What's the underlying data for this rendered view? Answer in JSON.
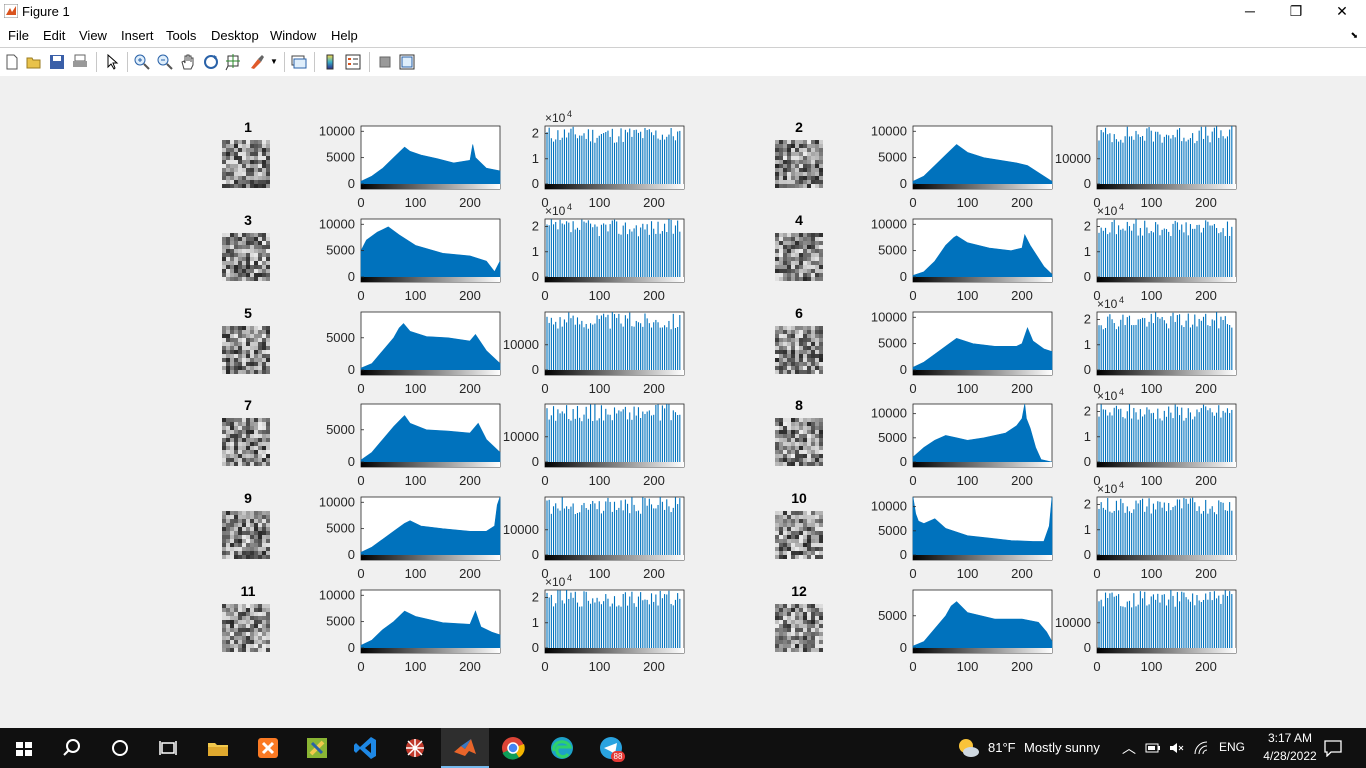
{
  "window": {
    "title": "Figure 1"
  },
  "menu": [
    "File",
    "Edit",
    "View",
    "Insert",
    "Tools",
    "Desktop",
    "Window",
    "Help"
  ],
  "toolbar": [
    "new-figure",
    "open",
    "save",
    "print",
    "edit-plot",
    "zoom-in",
    "zoom-out",
    "pan",
    "rotate-3d",
    "data-cursor",
    "brush",
    "link-plot",
    "colorbar",
    "legend",
    "hide-plot-tools",
    "show-plot-tools"
  ],
  "colors": {
    "histogram": "#0072bd",
    "background": "#f0f0f0",
    "taskbar": "#101010"
  },
  "subplots": [
    {
      "title": "1",
      "hist_yticks": [
        "0",
        "5000",
        "10000"
      ],
      "eq_yticks": [
        "0",
        "1",
        "2"
      ],
      "eq_exponent": "4",
      "xticks": [
        "0",
        "100",
        "200"
      ]
    },
    {
      "title": "2",
      "hist_yticks": [
        "0",
        "5000",
        "10000"
      ],
      "eq_yticks": [
        "0",
        "10000"
      ],
      "eq_exponent": "",
      "xticks": [
        "0",
        "100",
        "200"
      ]
    },
    {
      "title": "3",
      "hist_yticks": [
        "0",
        "5000",
        "10000"
      ],
      "eq_yticks": [
        "0",
        "1",
        "2"
      ],
      "eq_exponent": "4",
      "xticks": [
        "0",
        "100",
        "200"
      ]
    },
    {
      "title": "4",
      "hist_yticks": [
        "0",
        "5000",
        "10000"
      ],
      "eq_yticks": [
        "0",
        "1",
        "2"
      ],
      "eq_exponent": "4",
      "xticks": [
        "0",
        "100",
        "200"
      ]
    },
    {
      "title": "5",
      "hist_yticks": [
        "0",
        "5000"
      ],
      "eq_yticks": [
        "0",
        "10000"
      ],
      "eq_exponent": "",
      "xticks": [
        "0",
        "100",
        "200"
      ]
    },
    {
      "title": "6",
      "hist_yticks": [
        "0",
        "5000",
        "10000"
      ],
      "eq_yticks": [
        "0",
        "1",
        "2"
      ],
      "eq_exponent": "4",
      "xticks": [
        "0",
        "100",
        "200"
      ]
    },
    {
      "title": "7",
      "hist_yticks": [
        "0",
        "5000"
      ],
      "eq_yticks": [
        "0",
        "10000"
      ],
      "eq_exponent": "",
      "xticks": [
        "0",
        "100",
        "200"
      ]
    },
    {
      "title": "8",
      "hist_yticks": [
        "0",
        "5000",
        "10000"
      ],
      "eq_yticks": [
        "0",
        "1",
        "2"
      ],
      "eq_exponent": "4",
      "xticks": [
        "0",
        "100",
        "200"
      ]
    },
    {
      "title": "9",
      "hist_yticks": [
        "0",
        "5000",
        "10000"
      ],
      "eq_yticks": [
        "0",
        "10000"
      ],
      "eq_exponent": "",
      "xticks": [
        "0",
        "100",
        "200"
      ]
    },
    {
      "title": "10",
      "hist_yticks": [
        "0",
        "5000",
        "10000"
      ],
      "eq_yticks": [
        "0",
        "1",
        "2"
      ],
      "eq_exponent": "4",
      "xticks": [
        "0",
        "100",
        "200"
      ]
    },
    {
      "title": "11",
      "hist_yticks": [
        "0",
        "5000",
        "10000"
      ],
      "eq_yticks": [
        "0",
        "1",
        "2"
      ],
      "eq_exponent": "4",
      "xticks": [
        "0",
        "100",
        "200"
      ]
    },
    {
      "title": "12",
      "hist_yticks": [
        "0",
        "5000"
      ],
      "eq_yticks": [
        "0",
        "10000"
      ],
      "eq_exponent": "",
      "xticks": [
        "0",
        "100",
        "200"
      ]
    }
  ],
  "chart_data": [
    {
      "type": "area",
      "title": "1",
      "x": [
        0,
        20,
        40,
        60,
        75,
        80,
        90,
        110,
        140,
        170,
        200,
        205,
        210,
        230,
        255
      ],
      "y": [
        500,
        1500,
        3000,
        5000,
        6500,
        7000,
        6200,
        5500,
        4800,
        4000,
        4500,
        7500,
        5000,
        3000,
        2500
      ],
      "ylim": [
        0,
        11000
      ],
      "xlim": [
        0,
        255
      ]
    },
    {
      "type": "area",
      "title": "2",
      "x": [
        0,
        20,
        40,
        60,
        75,
        80,
        100,
        130,
        160,
        190,
        210,
        240,
        255
      ],
      "y": [
        500,
        1500,
        3500,
        5500,
        7000,
        7500,
        6000,
        5000,
        4500,
        4000,
        3500,
        1500,
        500
      ],
      "ylim": [
        0,
        11000
      ],
      "xlim": [
        0,
        255
      ]
    },
    {
      "type": "area",
      "title": "3",
      "x": [
        0,
        10,
        30,
        50,
        70,
        100,
        150,
        200,
        230,
        245,
        255
      ],
      "y": [
        5000,
        7000,
        8500,
        9500,
        8000,
        6000,
        4500,
        4000,
        3000,
        1000,
        3000
      ],
      "ylim": [
        0,
        11000
      ],
      "xlim": [
        0,
        255
      ]
    },
    {
      "type": "area",
      "title": "4",
      "x": [
        0,
        20,
        40,
        60,
        75,
        80,
        100,
        140,
        180,
        200,
        205,
        215,
        240,
        255
      ],
      "y": [
        300,
        1000,
        3000,
        6000,
        7500,
        7800,
        6500,
        5500,
        5000,
        5500,
        8000,
        6000,
        2000,
        500
      ],
      "ylim": [
        0,
        11000
      ],
      "xlim": [
        0,
        255
      ]
    },
    {
      "type": "area",
      "title": "5",
      "x": [
        0,
        20,
        40,
        60,
        70,
        78,
        90,
        120,
        160,
        200,
        210,
        230,
        255
      ],
      "y": [
        300,
        1000,
        3000,
        5000,
        6500,
        7200,
        6000,
        5200,
        5000,
        4500,
        5500,
        3000,
        1000
      ],
      "ylim": [
        0,
        9000
      ],
      "xlim": [
        0,
        255
      ]
    },
    {
      "type": "area",
      "title": "6",
      "x": [
        0,
        20,
        40,
        60,
        80,
        110,
        150,
        190,
        200,
        210,
        220,
        240,
        255
      ],
      "y": [
        500,
        1500,
        3000,
        4500,
        6000,
        5000,
        4500,
        4500,
        5000,
        8000,
        5500,
        4000,
        3500
      ],
      "ylim": [
        0,
        11000
      ],
      "xlim": [
        0,
        255
      ]
    },
    {
      "type": "area",
      "title": "7",
      "x": [
        0,
        20,
        40,
        60,
        75,
        80,
        90,
        120,
        160,
        200,
        215,
        230,
        255
      ],
      "y": [
        300,
        1500,
        3500,
        5500,
        6800,
        7200,
        6000,
        5000,
        4800,
        4500,
        6000,
        3500,
        1500
      ],
      "ylim": [
        0,
        9000
      ],
      "xlim": [
        0,
        255
      ]
    },
    {
      "type": "area",
      "title": "8",
      "x": [
        0,
        20,
        40,
        60,
        80,
        100,
        130,
        170,
        190,
        200,
        205,
        208,
        215,
        225,
        235,
        255
      ],
      "y": [
        1000,
        3000,
        4500,
        5500,
        5000,
        4500,
        5000,
        6000,
        7500,
        9000,
        12000,
        9000,
        7000,
        3000,
        500,
        0
      ],
      "ylim": [
        0,
        12000
      ],
      "xlim": [
        0,
        255
      ]
    },
    {
      "type": "area",
      "title": "9",
      "x": [
        0,
        20,
        40,
        60,
        80,
        90,
        110,
        150,
        200,
        230,
        245,
        250,
        255
      ],
      "y": [
        500,
        1500,
        3000,
        4500,
        6000,
        6500,
        5500,
        5000,
        4500,
        4500,
        5500,
        9500,
        11000
      ],
      "ylim": [
        0,
        11000
      ],
      "xlim": [
        0,
        255
      ]
    },
    {
      "type": "area",
      "title": "10",
      "x": [
        0,
        5,
        10,
        20,
        40,
        60,
        100,
        140,
        180,
        220,
        240,
        250,
        255
      ],
      "y": [
        12000,
        8500,
        7000,
        6500,
        7500,
        5500,
        4000,
        3500,
        3000,
        2800,
        2800,
        6000,
        12000
      ],
      "ylim": [
        0,
        12000
      ],
      "xlim": [
        0,
        255
      ]
    },
    {
      "type": "area",
      "title": "11",
      "x": [
        0,
        20,
        40,
        60,
        75,
        80,
        100,
        150,
        200,
        210,
        220,
        240,
        255
      ],
      "y": [
        500,
        1500,
        3500,
        5000,
        6500,
        7000,
        6000,
        4800,
        4500,
        7000,
        4000,
        3000,
        2500
      ],
      "ylim": [
        0,
        11000
      ],
      "xlim": [
        0,
        255
      ]
    },
    {
      "type": "area",
      "title": "12",
      "x": [
        0,
        20,
        40,
        60,
        70,
        80,
        100,
        150,
        200,
        230,
        245,
        255
      ],
      "y": [
        300,
        1000,
        3000,
        5000,
        6500,
        7200,
        5500,
        4500,
        4500,
        4000,
        2500,
        1000
      ],
      "ylim": [
        0,
        9000
      ],
      "xlim": [
        0,
        255
      ]
    }
  ],
  "taskbar": {
    "weather_temp": "81°F",
    "weather_text": "Mostly sunny",
    "language": "ENG",
    "time": "3:17 AM",
    "date": "4/28/2022",
    "telegram_badge": "88"
  }
}
